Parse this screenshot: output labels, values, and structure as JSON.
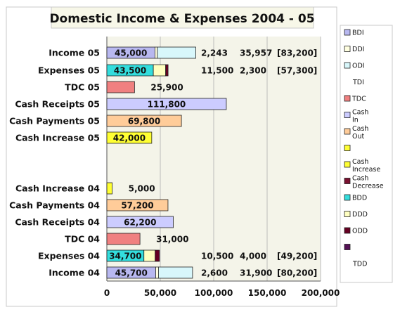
{
  "chart_data": {
    "type": "bar",
    "stacked": true,
    "orientation": "horizontal",
    "title": "Domestic Income & Expenses 2004 - 05",
    "xlim": [
      0,
      200000
    ],
    "x_ticks": [
      "0",
      "50,000",
      "100,000",
      "150,000",
      "200,000"
    ],
    "grid": true,
    "legend_position": "right",
    "colors": {
      "BDI": "#b8b8f0",
      "DDI": "#ffffe0",
      "ODI": "#d8f7fb",
      "TDC": "#f08080",
      "Cash In": "#ccccff",
      "Cash Out": "#ffcc99",
      "Cash Increase": "#ffff33",
      "Cash Decrease": "#7a1030",
      "BDD": "#33dddd",
      "DDD": "#ffffc0",
      "ODD": "#660022",
      "TDD": "#551155",
      "plot_bg": "#f4f4e9"
    },
    "categories": [
      "Income 05",
      "Expenses 05",
      "TDC 05",
      "Cash Receipts 05",
      "Cash Payments 05",
      "Cash Increase 05",
      "Cash Increase 04",
      "Cash Payments 04",
      "Cash Receipts 04",
      "TDC  04",
      "Expenses 04",
      "Income 04"
    ],
    "bars": [
      {
        "category": "Income 05",
        "segments": [
          {
            "series": "BDI",
            "value": 45000,
            "label": "45,000"
          },
          {
            "series": "DDI",
            "value": 2243,
            "label": "2,243"
          },
          {
            "series": "ODI",
            "value": 35957,
            "label": "35,957"
          }
        ],
        "total_label": "[83,200]"
      },
      {
        "category": "Expenses 05",
        "segments": [
          {
            "series": "BDD",
            "value": 43500,
            "label": "43,500"
          },
          {
            "series": "DDD",
            "value": 11500,
            "label": "11,500"
          },
          {
            "series": "ODD",
            "value": 2300,
            "label": "2,300"
          }
        ],
        "total_label": "[57,300]"
      },
      {
        "category": "TDC 05",
        "segments": [
          {
            "series": "TDC",
            "value": 25900,
            "label": "25,900"
          }
        ]
      },
      {
        "category": "Cash Receipts 05",
        "segments": [
          {
            "series": "Cash In",
            "value": 111800,
            "label": "111,800"
          }
        ]
      },
      {
        "category": "Cash Payments 05",
        "segments": [
          {
            "series": "Cash Out",
            "value": 69800,
            "label": "69,800"
          }
        ]
      },
      {
        "category": "Cash Increase 05",
        "segments": [
          {
            "series": "Cash Increase",
            "value": 42000,
            "label": "42,000"
          }
        ]
      },
      {
        "category": "Cash Increase 04",
        "segments": [
          {
            "series": "Cash Increase",
            "value": 5000,
            "label": "5,000"
          }
        ]
      },
      {
        "category": "Cash Payments 04",
        "segments": [
          {
            "series": "Cash Out",
            "value": 57200,
            "label": "57,200"
          }
        ]
      },
      {
        "category": "Cash Receipts 04",
        "segments": [
          {
            "series": "Cash In",
            "value": 62200,
            "label": "62,200"
          }
        ]
      },
      {
        "category": "TDC  04",
        "segments": [
          {
            "series": "TDC",
            "value": 31000,
            "label": "31,000"
          }
        ]
      },
      {
        "category": "Expenses 04",
        "segments": [
          {
            "series": "BDD",
            "value": 34700,
            "label": "34,700"
          },
          {
            "series": "DDD",
            "value": 10500,
            "label": "10,500"
          },
          {
            "series": "ODD",
            "value": 4000,
            "label": "4,000"
          }
        ],
        "total_label": "[49,200]"
      },
      {
        "category": "Income 04",
        "segments": [
          {
            "series": "BDI",
            "value": 45700,
            "label": "45,700"
          },
          {
            "series": "DDI",
            "value": 2600,
            "label": "2,600"
          },
          {
            "series": "ODI",
            "value": 31900,
            "label": "31,900"
          }
        ],
        "total_label": "[80,200]"
      }
    ],
    "legend": [
      {
        "label": "BDI",
        "series": "BDI"
      },
      {
        "label": "DDI",
        "series": "DDI"
      },
      {
        "label": "ODI",
        "series": "ODI"
      },
      {
        "label": "TDI",
        "series": null
      },
      {
        "label": "TDC",
        "series": "TDC"
      },
      {
        "label": "Cash In",
        "series": "Cash In"
      },
      {
        "label": "Cash Out",
        "series": "Cash Out"
      },
      {
        "label": "",
        "series": "Cash Increase"
      },
      {
        "label": "Cash Increase",
        "series": "Cash Increase"
      },
      {
        "label": "Cash Decrease",
        "series": "Cash Decrease"
      },
      {
        "label": "BDD",
        "series": "BDD"
      },
      {
        "label": "DDD",
        "series": "DDD"
      },
      {
        "label": "ODD",
        "series": "ODD"
      },
      {
        "label": "",
        "series": "TDD"
      },
      {
        "label": "TDD",
        "series": null
      }
    ]
  }
}
